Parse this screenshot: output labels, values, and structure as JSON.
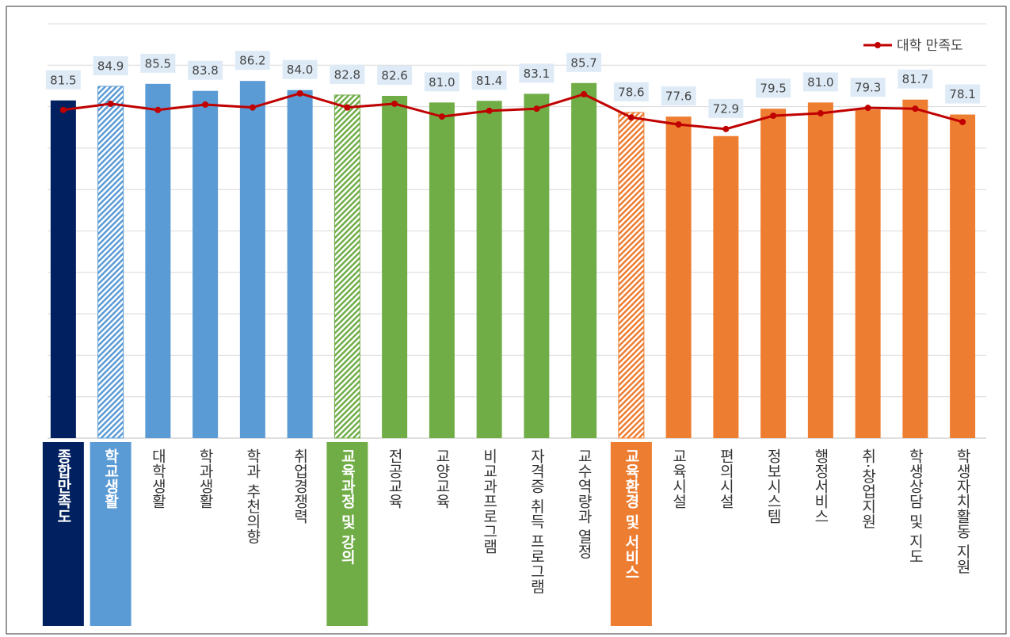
{
  "chart_data": {
    "type": "bar",
    "categories": [
      "종합만족도",
      "학교생활",
      "대학생활",
      "학과생활",
      "학과 추천의향",
      "취업경쟁력",
      "교육과정 및 강의",
      "전공교육",
      "교양교육",
      "비교과프로그램",
      "자격증 취득 프로그램",
      "교수역량과 열정",
      "교육환경 및 서비스",
      "교육시설",
      "편의시설",
      "정보시스템",
      "행정서비스",
      "취·창업지원",
      "학생상담 및 지도",
      "학생자치활동 지원"
    ],
    "values": [
      81.5,
      84.9,
      85.5,
      83.8,
      86.2,
      84.0,
      82.8,
      82.6,
      81.0,
      81.4,
      83.1,
      85.7,
      78.6,
      77.6,
      72.9,
      79.5,
      81.0,
      79.3,
      81.7,
      78.1
    ],
    "value_labels": [
      "81.5",
      "84.9",
      "85.5",
      "83.8",
      "86.2",
      "84.0",
      "82.8",
      "82.6",
      "81.0",
      "81.4",
      "83.1",
      "85.7",
      "78.6",
      "77.6",
      "72.9",
      "79.5",
      "81.0",
      "79.3",
      "81.7",
      "78.1"
    ],
    "colors": [
      "#002060",
      "#5b9bd5",
      "#5b9bd5",
      "#5b9bd5",
      "#5b9bd5",
      "#5b9bd5",
      "#70ad47",
      "#70ad47",
      "#70ad47",
      "#70ad47",
      "#70ad47",
      "#70ad47",
      "#ed7d31",
      "#ed7d31",
      "#ed7d31",
      "#ed7d31",
      "#ed7d31",
      "#ed7d31",
      "#ed7d31",
      "#ed7d31"
    ],
    "hatched": [
      false,
      true,
      false,
      false,
      false,
      false,
      true,
      false,
      false,
      false,
      false,
      false,
      true,
      false,
      false,
      false,
      false,
      false,
      false,
      false
    ],
    "headers": [
      true,
      true,
      false,
      false,
      false,
      false,
      true,
      false,
      false,
      false,
      false,
      false,
      true,
      false,
      false,
      false,
      false,
      false,
      false,
      false
    ],
    "series": [
      {
        "name": "대학 만족도",
        "color": "#c00000",
        "values": [
          79.2,
          80.7,
          79.2,
          80.5,
          79.8,
          83.2,
          79.8,
          80.7,
          77.6,
          79.0,
          79.5,
          83.0,
          77.4,
          75.7,
          74.6,
          77.8,
          78.4,
          79.7,
          79.5,
          76.3
        ]
      }
    ],
    "ylim": [
      0,
      100
    ],
    "yticks": [
      0,
      10,
      20,
      30,
      40,
      50,
      60,
      70,
      80,
      90,
      100
    ],
    "grid": true,
    "legend": "top-right"
  }
}
